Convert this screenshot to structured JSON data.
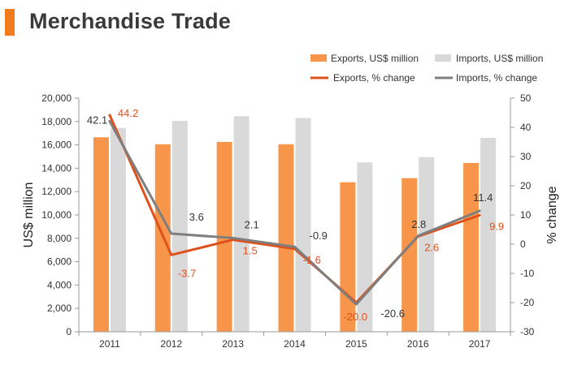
{
  "header": {
    "title": "Merchandise Trade"
  },
  "colors": {
    "title_marker": "#f07c1e",
    "exports_bar": "#f7964a",
    "imports_bar": "#d9d9d9",
    "exports_line": "#e0501c",
    "imports_line": "#7f7f7f",
    "axis": "#999999",
    "text": "#333333"
  },
  "chart_data": {
    "type": "bar",
    "title": "",
    "categories": [
      "2011",
      "2012",
      "2013",
      "2014",
      "2015",
      "2016",
      "2017"
    ],
    "ylabel": "US$  million",
    "y2label": "% change",
    "ylim": [
      0,
      20000
    ],
    "yticks": [
      "0",
      "2,000",
      "4,000",
      "6,000",
      "8,000",
      "10,000",
      "12,000",
      "14,000",
      "16,000",
      "18,000",
      "20,000"
    ],
    "y2lim": [
      -30,
      50
    ],
    "y2ticks": [
      "-30",
      "-20",
      "-10",
      "0",
      "10",
      "20",
      "30",
      "40",
      "50"
    ],
    "grid": false,
    "legend_position": "top-right",
    "series": [
      {
        "name": "Exports, US$ million",
        "type": "bar",
        "axis": "left",
        "values": [
          16650,
          16050,
          16250,
          16050,
          12800,
          13150,
          14450
        ]
      },
      {
        "name": "Imports, US$ million",
        "type": "bar",
        "axis": "left",
        "values": [
          17450,
          18050,
          18450,
          18300,
          14500,
          14950,
          16600
        ]
      },
      {
        "name": "Exports, % change",
        "type": "line",
        "axis": "right",
        "values": [
          44.2,
          -3.7,
          1.5,
          -1.6,
          -20.0,
          2.6,
          9.9
        ],
        "labels": [
          "44.2",
          "-3.7",
          "1.5",
          "-1.6",
          "-20.0",
          "2.6",
          "9.9"
        ]
      },
      {
        "name": "Imports, % change",
        "type": "line",
        "axis": "right",
        "values": [
          42.1,
          3.6,
          2.1,
          -0.9,
          -20.6,
          2.8,
          11.4
        ],
        "labels": [
          "42.1",
          "3.6",
          "2.1",
          "-0.9",
          "-20.6",
          "2.8",
          "11.4"
        ]
      }
    ]
  }
}
